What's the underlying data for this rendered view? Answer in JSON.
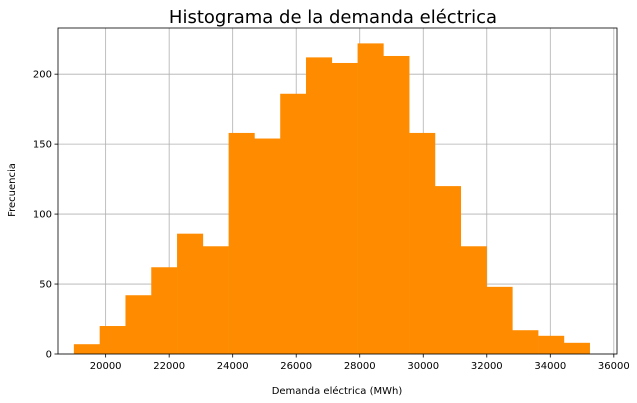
{
  "chart_data": {
    "type": "bar",
    "title": "Histograma de la demanda eléctrica",
    "xlabel": "Demanda eléctrica (MWh)",
    "ylabel": "Frecuencia",
    "xlim": [
      18500,
      36100
    ],
    "ylim": [
      0,
      233
    ],
    "grid": true,
    "bar_color": "#ff8c00",
    "grid_color": "#b0b0b0",
    "x_ticks": [
      20000,
      22000,
      24000,
      26000,
      28000,
      30000,
      32000,
      34000,
      36000
    ],
    "y_ticks": [
      0,
      50,
      100,
      150,
      200
    ],
    "bin_edges": [
      19000,
      19812,
      20624,
      21436,
      22248,
      23060,
      23872,
      24684,
      25496,
      26308,
      27120,
      27932,
      28744,
      29556,
      30368,
      31180,
      31992,
      32804,
      33616,
      34428,
      35240
    ],
    "values": [
      7,
      20,
      42,
      62,
      86,
      77,
      158,
      154,
      186,
      212,
      208,
      222,
      213,
      158,
      120,
      77,
      48,
      17,
      13,
      8
    ]
  }
}
